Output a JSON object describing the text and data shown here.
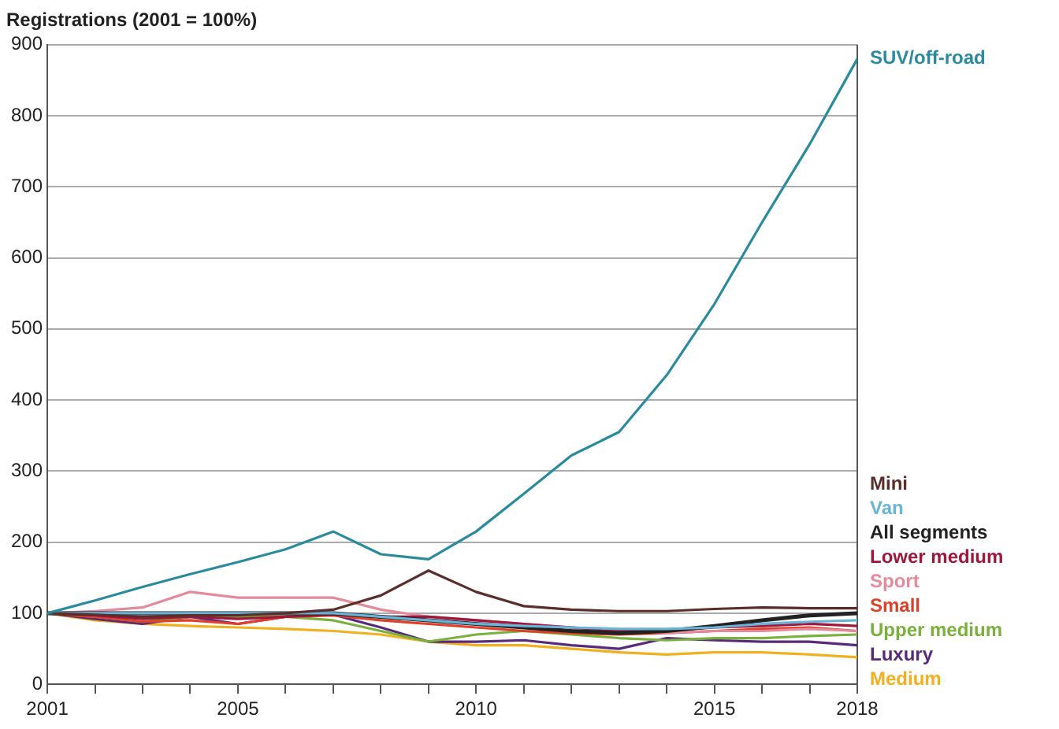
{
  "chart_data": {
    "type": "line",
    "ylabel": "Registrations (2001 = 100%)",
    "x": [
      2001,
      2002,
      2003,
      2004,
      2005,
      2006,
      2007,
      2008,
      2009,
      2010,
      2011,
      2012,
      2013,
      2014,
      2015,
      2016,
      2017,
      2018
    ],
    "xlim": [
      2001,
      2018
    ],
    "xticks": [
      2001,
      {
        "value": 2002,
        "label": null
      },
      {
        "value": 2003,
        "label": null
      },
      {
        "value": 2004,
        "label": null
      },
      2005,
      {
        "value": 2006,
        "label": null
      },
      {
        "value": 2007,
        "label": null
      },
      {
        "value": 2008,
        "label": null
      },
      {
        "value": 2009,
        "label": null
      },
      2010,
      {
        "value": 2011,
        "label": null
      },
      {
        "value": 2012,
        "label": null
      },
      {
        "value": 2013,
        "label": null
      },
      {
        "value": 2014,
        "label": null
      },
      2015,
      {
        "value": 2016,
        "label": null
      },
      {
        "value": 2017,
        "label": null
      },
      2018
    ],
    "ylim": [
      0,
      900
    ],
    "yticks": [
      0,
      100,
      200,
      300,
      400,
      500,
      600,
      700,
      800,
      900
    ],
    "grid": "y",
    "legend": false,
    "marker": "none",
    "line_style": "solid",
    "series": [
      {
        "name": "SUV/off-road",
        "color": "#2a8a9e",
        "values": [
          100,
          118,
          137,
          155,
          172,
          190,
          215,
          183,
          176,
          215,
          268,
          322,
          355,
          435,
          535,
          650,
          760,
          880
        ]
      },
      {
        "name": "Mini",
        "color": "#5a2e2a",
        "values": [
          100,
          98,
          95,
          97,
          97,
          100,
          105,
          125,
          160,
          130,
          110,
          105,
          103,
          103,
          106,
          108,
          107,
          107
        ]
      },
      {
        "name": "Van",
        "color": "#6ab4d8",
        "values": [
          100,
          100,
          100,
          100,
          100,
          100,
          100,
          95,
          90,
          85,
          82,
          80,
          78,
          78,
          80,
          85,
          88,
          90
        ]
      },
      {
        "name": "All segments",
        "color": "#222222",
        "values": [
          100,
          100,
          100,
          100,
          100,
          100,
          100,
          95,
          90,
          85,
          80,
          75,
          72,
          75,
          82,
          90,
          97,
          100
        ]
      },
      {
        "name": "Lower medium",
        "color": "#a0173c",
        "values": [
          100,
          97,
          92,
          95,
          92,
          95,
          98,
          95,
          95,
          90,
          85,
          80,
          75,
          75,
          80,
          82,
          85,
          82
        ]
      },
      {
        "name": "Sport",
        "color": "#e48a9a",
        "values": [
          100,
          103,
          108,
          130,
          122,
          122,
          122,
          105,
          95,
          90,
          85,
          80,
          75,
          72,
          75,
          75,
          78,
          75
        ]
      },
      {
        "name": "Small",
        "color": "#e0402a",
        "values": [
          100,
          95,
          88,
          90,
          85,
          95,
          97,
          90,
          85,
          80,
          75,
          72,
          70,
          72,
          75,
          78,
          80,
          75
        ]
      },
      {
        "name": "Upper medium",
        "color": "#7ab03c",
        "values": [
          100,
          95,
          88,
          95,
          95,
          95,
          90,
          75,
          60,
          70,
          75,
          70,
          65,
          62,
          65,
          65,
          68,
          70
        ]
      },
      {
        "name": "Luxury",
        "color": "#5a2a7a",
        "values": [
          100,
          92,
          85,
          95,
          85,
          95,
          98,
          80,
          60,
          60,
          62,
          55,
          50,
          65,
          62,
          60,
          60,
          55
        ]
      },
      {
        "name": "Medium",
        "color": "#f0b020",
        "values": [
          100,
          90,
          85,
          82,
          80,
          78,
          75,
          70,
          60,
          55,
          55,
          50,
          45,
          42,
          45,
          45,
          42,
          38
        ]
      }
    ]
  }
}
